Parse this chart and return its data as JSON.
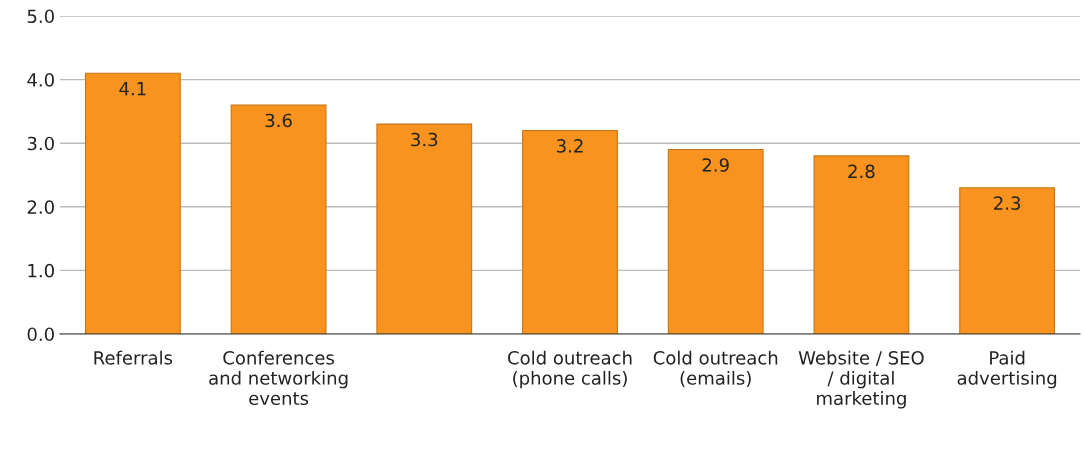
{
  "chart_data": {
    "type": "bar",
    "categories": [
      "Referrals",
      "Conferences and networking events",
      null,
      "Cold outreach (phone calls)",
      "Cold outreach (emails)",
      "Website / SEO / digital marketing",
      "Paid advertising"
    ],
    "values": [
      4.1,
      3.6,
      3.3,
      3.2,
      2.9,
      2.8,
      2.3
    ],
    "color": "#f7931e",
    "ylim": [
      0,
      5
    ],
    "yticks": [
      {
        "value": 0,
        "label": "0.0"
      },
      {
        "value": 1,
        "label": "1.0"
      },
      {
        "value": 2,
        "label": "2.0"
      },
      {
        "value": 3,
        "label": "3.0"
      },
      {
        "value": 4,
        "label": "4.0"
      },
      {
        "value": 5,
        "label": "5.0"
      }
    ],
    "grid": "y",
    "data_labels": true
  }
}
